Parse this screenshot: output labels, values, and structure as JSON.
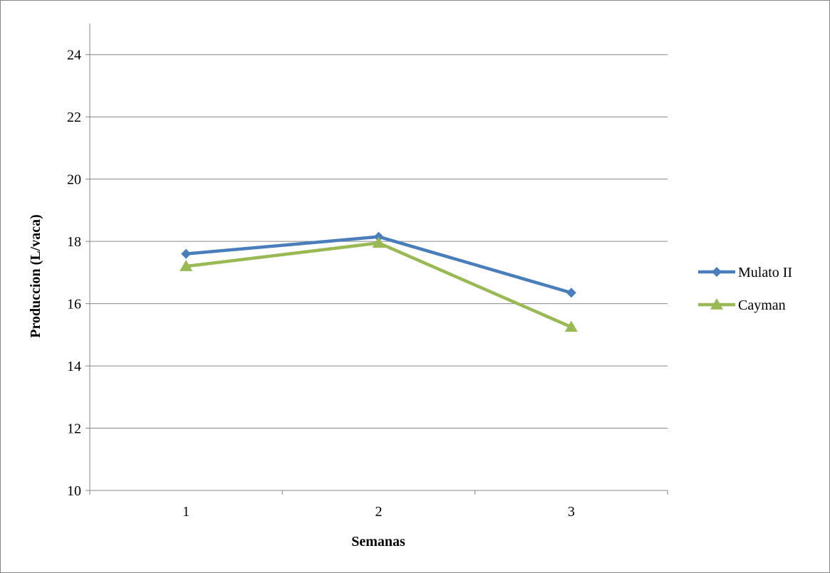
{
  "chart_data": {
    "type": "line",
    "title": "",
    "xlabel": "Semanas",
    "ylabel": "Produccion (L/vaca)",
    "categories": [
      "1",
      "2",
      "3"
    ],
    "ylim": [
      10,
      25
    ],
    "yticks": [
      10,
      12,
      14,
      16,
      18,
      20,
      22,
      24
    ],
    "grid": true,
    "legend_position": "right",
    "series": [
      {
        "name": "Mulato II",
        "values": [
          17.6,
          18.15,
          16.35
        ],
        "color": "#4a7ebb",
        "marker": "diamond"
      },
      {
        "name": "Cayman",
        "values": [
          17.2,
          17.95,
          15.25
        ],
        "color": "#98b954",
        "marker": "triangle"
      }
    ]
  }
}
